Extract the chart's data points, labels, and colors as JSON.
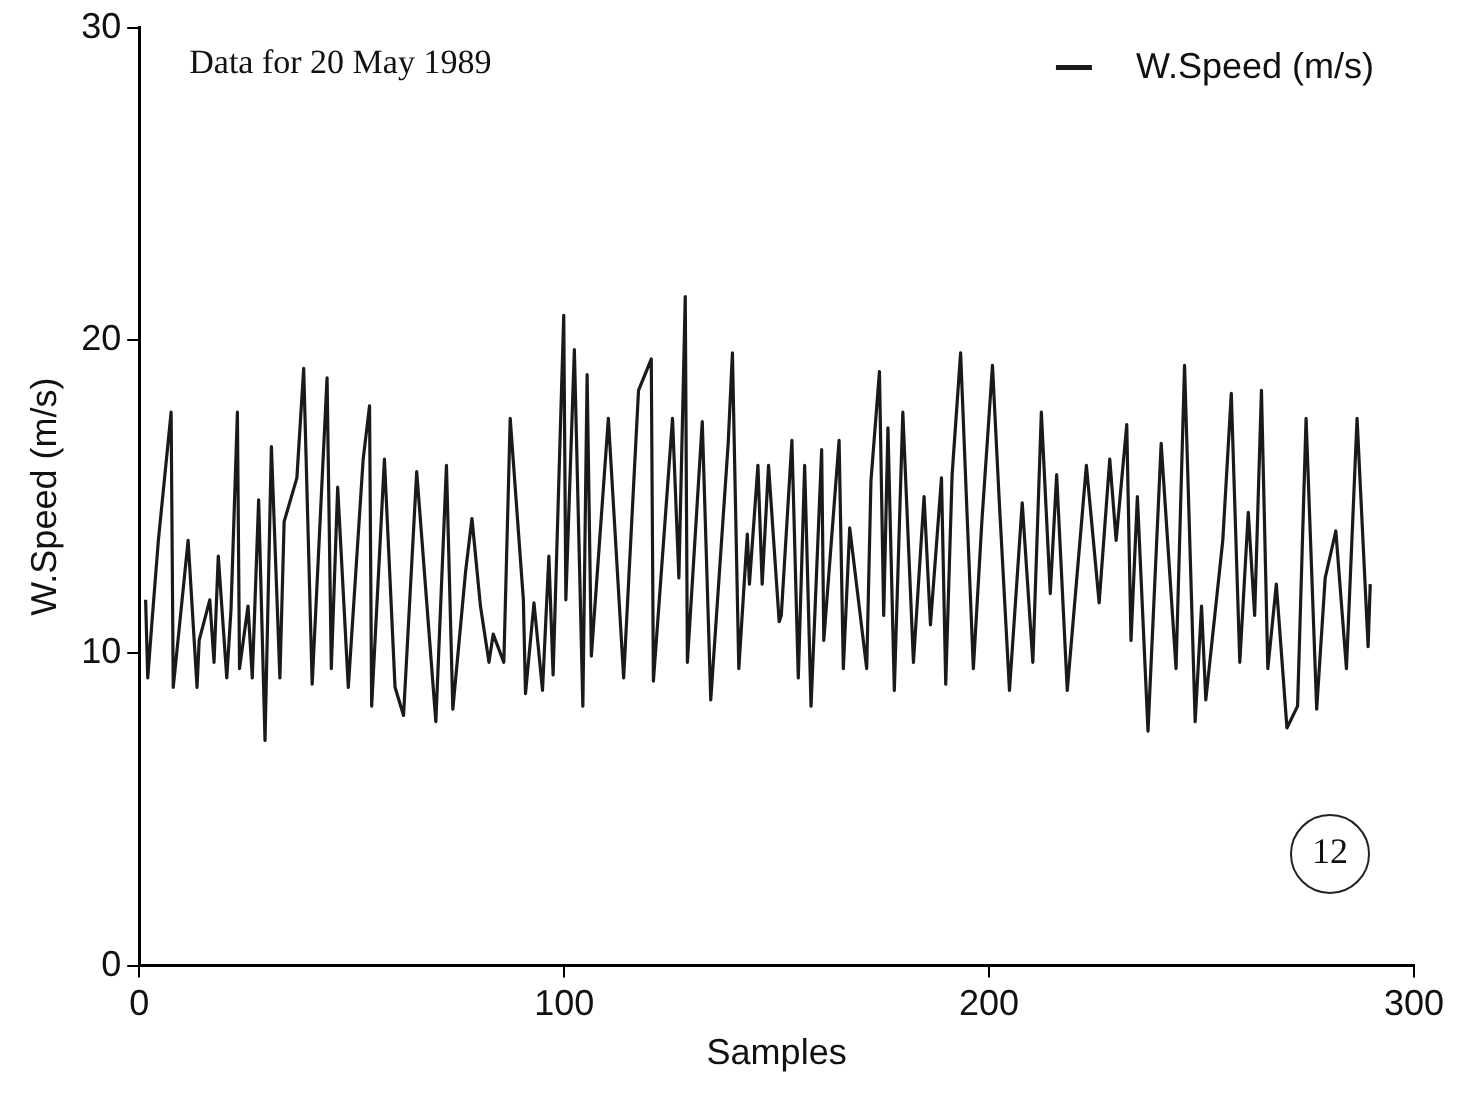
{
  "chart_data": {
    "type": "line",
    "xlabel": "Samples",
    "ylabel": "W.Speed (m/s)",
    "annotations": [
      "Data for 20 May 1989",
      "12"
    ],
    "xlim": [
      0,
      300
    ],
    "xticks": [
      0,
      100,
      200,
      300
    ],
    "ylim": [
      0,
      30
    ],
    "yticks": [
      0,
      10,
      20,
      30
    ],
    "grid": false,
    "legend": "top right",
    "marker": "none",
    "line_style": "solid",
    "series": [
      {
        "name": "W.Speed (m/s)",
        "color": "#1a1a1a",
        "x": [
          1.5,
          2.0,
          3.0,
          4.5,
          7.5,
          8.0,
          11.5,
          13.6,
          14.1,
          16.6,
          17.6,
          18.6,
          20.6,
          21.6,
          23.1,
          23.6,
          25.6,
          26.6,
          28.1,
          29.6,
          31.1,
          33.1,
          34.1,
          37.1,
          38.7,
          40.7,
          44.2,
          45.2,
          46.7,
          49.2,
          52.7,
          54.2,
          54.7,
          57.7,
          60.2,
          62.2,
          65.3,
          69.8,
          72.3,
          73.8,
          76.8,
          78.3,
          80.3,
          82.3,
          83.3,
          85.8,
          87.3,
          90.4,
          90.9,
          92.9,
          94.9,
          96.4,
          97.4,
          99.9,
          100.4,
          102.4,
          104.4,
          105.4,
          106.4,
          110.4,
          114.0,
          117.5,
          120.5,
          121.0,
          125.5,
          127.0,
          128.5,
          129.0,
          132.5,
          134.5,
          138.6,
          139.6,
          141.1,
          143.1,
          143.6,
          145.6,
          146.6,
          148.1,
          150.6,
          151.1,
          153.6,
          155.1,
          156.6,
          158.1,
          160.6,
          161.1,
          164.7,
          165.7,
          167.2,
          171.2,
          172.2,
          174.2,
          175.2,
          176.2,
          177.7,
          179.7,
          182.2,
          184.7,
          186.2,
          188.8,
          189.8,
          191.3,
          193.3,
          194.8,
          196.3,
          198.3,
          200.8,
          202.3,
          204.8,
          207.8,
          210.3,
          212.3,
          214.4,
          215.9,
          218.4,
          222.9,
          225.9,
          228.4,
          229.9,
          232.4,
          233.4,
          234.9,
          237.4,
          240.5,
          244.0,
          246.0,
          248.5,
          250.0,
          251.0,
          255.0,
          257.0,
          259.0,
          261.0,
          262.5,
          264.1,
          265.6,
          267.6,
          270.1,
          272.6,
          274.6,
          277.1,
          279.1,
          281.6,
          284.1,
          286.6,
          289.2,
          289.7
        ],
        "values": [
          11.7,
          9.2,
          11.0,
          13.6,
          17.7,
          8.9,
          13.6,
          8.9,
          10.4,
          11.7,
          9.7,
          13.1,
          9.2,
          11.4,
          17.7,
          9.5,
          11.5,
          9.2,
          14.9,
          7.2,
          16.6,
          9.2,
          14.2,
          15.6,
          19.1,
          9.0,
          18.8,
          9.5,
          15.3,
          8.9,
          16.2,
          17.9,
          8.3,
          16.2,
          8.9,
          8.0,
          15.8,
          7.8,
          16.0,
          8.2,
          12.6,
          14.3,
          11.5,
          9.7,
          10.6,
          9.7,
          17.5,
          11.7,
          8.7,
          11.6,
          8.8,
          13.1,
          9.3,
          20.8,
          11.7,
          19.7,
          8.3,
          18.9,
          9.9,
          17.5,
          9.2,
          18.4,
          19.4,
          9.1,
          17.5,
          12.4,
          21.4,
          9.7,
          17.4,
          8.5,
          16.7,
          19.6,
          9.5,
          13.8,
          12.2,
          16.0,
          12.2,
          16.0,
          11.0,
          11.2,
          16.8,
          9.2,
          16.0,
          8.3,
          16.5,
          10.4,
          16.8,
          9.5,
          14.0,
          9.5,
          15.5,
          19.0,
          11.2,
          17.2,
          8.8,
          17.7,
          9.7,
          15.0,
          10.9,
          15.6,
          9.0,
          15.7,
          19.6,
          14.5,
          9.5,
          14.2,
          19.2,
          15.1,
          8.8,
          14.8,
          9.7,
          17.7,
          11.9,
          15.7,
          8.8,
          16.0,
          11.6,
          16.2,
          13.6,
          17.3,
          10.4,
          15.0,
          7.5,
          16.7,
          9.5,
          19.2,
          7.8,
          11.5,
          8.5,
          13.6,
          18.3,
          9.7,
          14.5,
          11.2,
          18.4,
          9.5,
          12.2,
          7.6,
          8.3,
          17.5,
          8.2,
          12.4,
          13.9,
          9.5,
          17.5,
          10.2,
          12.2
        ]
      }
    ]
  }
}
